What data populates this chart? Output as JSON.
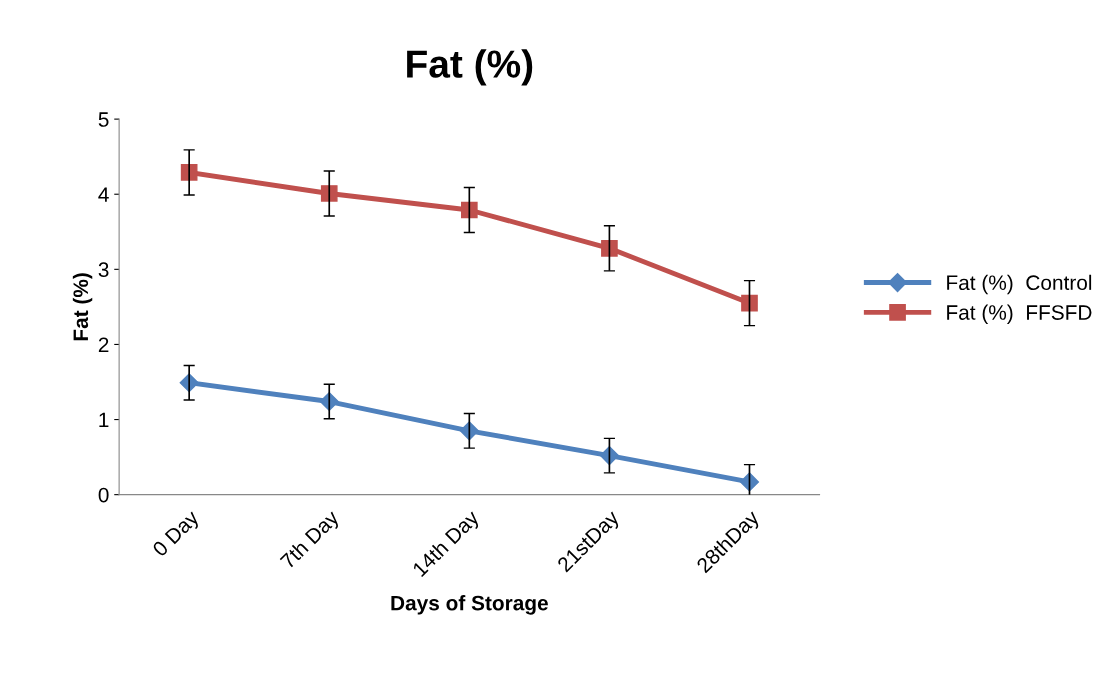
{
  "chart_data": {
    "type": "line",
    "title": "Fat (%)",
    "xlabel": "Days of Storage",
    "ylabel": "Fat (%)",
    "categories": [
      "0 Day",
      "7th Day",
      "14th Day",
      "21stDay",
      "28thDay"
    ],
    "series": [
      {
        "name": "Fat (%)  Control",
        "color": "#4f81bd",
        "marker": "diamond",
        "values": [
          1.49,
          1.24,
          0.85,
          0.52,
          0.17
        ],
        "errors": [
          0.23,
          0.23,
          0.23,
          0.23,
          0.23
        ]
      },
      {
        "name": "Fat (%)  FFSFD",
        "color": "#c0504d",
        "marker": "square",
        "values": [
          4.29,
          4.01,
          3.79,
          3.28,
          2.55
        ],
        "errors": [
          0.3,
          0.3,
          0.3,
          0.3,
          0.3
        ]
      }
    ],
    "ylim": [
      0,
      5
    ],
    "yticks": [
      0,
      1,
      2,
      3,
      4,
      5
    ],
    "grid": false,
    "legend": "right",
    "line_style": "solid"
  }
}
